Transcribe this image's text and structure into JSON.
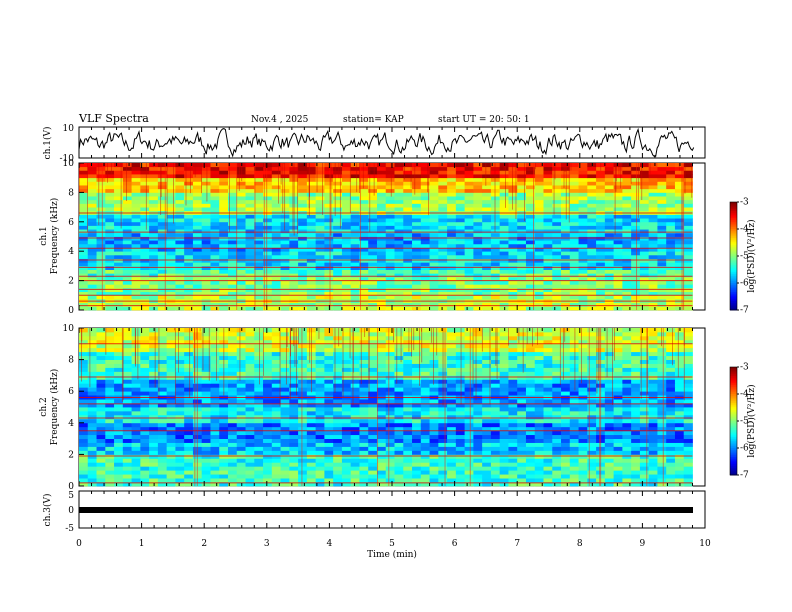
{
  "header": {
    "title": "VLF Spectra",
    "date": "Nov.4 , 2025",
    "station": "station= KAP",
    "start": "start UT = 20: 50: 1"
  },
  "chart_data": [
    {
      "type": "line",
      "name": "ch1-waveform",
      "ylabel": "ch.1(V)",
      "ylim": [
        -10,
        10
      ],
      "yticks": [
        "10",
        "-10"
      ],
      "xlim": [
        0,
        10
      ]
    },
    {
      "type": "heatmap",
      "name": "ch1-spectrogram",
      "ylabel_line1": "ch.1",
      "ylabel_line2": "Frequency (kHz)",
      "ylim": [
        0,
        10
      ],
      "yticks": [
        "0",
        "2",
        "4",
        "6",
        "8",
        "10"
      ],
      "xlim": [
        0,
        9.8
      ],
      "bands_khz": [
        {
          "from": 0,
          "to": 1,
          "level": -4.8
        },
        {
          "from": 1,
          "to": 2.2,
          "level": -5.0
        },
        {
          "from": 2.2,
          "to": 2.8,
          "level": -5.2
        },
        {
          "from": 2.8,
          "to": 4.0,
          "level": -5.6
        },
        {
          "from": 4.0,
          "to": 5.2,
          "level": -5.8
        },
        {
          "from": 5.2,
          "to": 6.6,
          "level": -5.6
        },
        {
          "from": 6.6,
          "to": 8.0,
          "level": -4.9
        },
        {
          "from": 8.0,
          "to": 9.0,
          "level": -4.3
        },
        {
          "from": 9.0,
          "to": 10,
          "level": -3.5
        }
      ],
      "lines_khz": [
        0.3,
        0.6,
        1.0,
        1.4,
        2.0,
        2.3,
        2.9,
        3.4,
        4.2,
        4.9,
        5.3,
        6.6
      ],
      "colorbar": {
        "label": "log(PSD)(V²/Hz)",
        "range": [
          -7,
          -3
        ],
        "ticks": [
          "-3",
          "-4",
          "-5",
          "-6",
          "-7"
        ]
      }
    },
    {
      "type": "heatmap",
      "name": "ch2-spectrogram",
      "ylabel_line1": "ch.2",
      "ylabel_line2": "Frequency (kHz)",
      "ylim": [
        0,
        10
      ],
      "yticks": [
        "0",
        "2",
        "4",
        "6",
        "8",
        "10"
      ],
      "xlim": [
        0,
        9.8
      ],
      "bands_khz": [
        {
          "from": 0,
          "to": 1,
          "level": -5.3
        },
        {
          "from": 1,
          "to": 2.0,
          "level": -5.3
        },
        {
          "from": 2.0,
          "to": 2.8,
          "level": -5.7
        },
        {
          "from": 2.8,
          "to": 4.0,
          "level": -6.0
        },
        {
          "from": 4.0,
          "to": 5.0,
          "level": -5.5
        },
        {
          "from": 5.0,
          "to": 6.8,
          "level": -5.9
        },
        {
          "from": 6.8,
          "to": 8.4,
          "level": -5.3
        },
        {
          "from": 8.4,
          "to": 10,
          "level": -4.7
        }
      ],
      "lines_khz": [
        0.2,
        1.9,
        3.5,
        4.3,
        5.2,
        5.6,
        6.9,
        9.0
      ],
      "colorbar": {
        "label": "log(PSD)(V²/Hz)",
        "range": [
          -7,
          -3
        ],
        "ticks": [
          "-3",
          "-4",
          "-5",
          "-6",
          "-7"
        ]
      }
    },
    {
      "type": "line",
      "name": "ch3-waveform",
      "ylabel": "ch.3(V)",
      "ylim": [
        -5,
        5
      ],
      "yticks": [
        "5",
        "0",
        "-5"
      ],
      "xlim": [
        0,
        10
      ]
    }
  ],
  "xaxis": {
    "label": "Time (min)",
    "range": [
      0,
      10
    ],
    "ticks": [
      "0",
      "1",
      "2",
      "3",
      "4",
      "5",
      "6",
      "7",
      "8",
      "9",
      "10"
    ]
  }
}
